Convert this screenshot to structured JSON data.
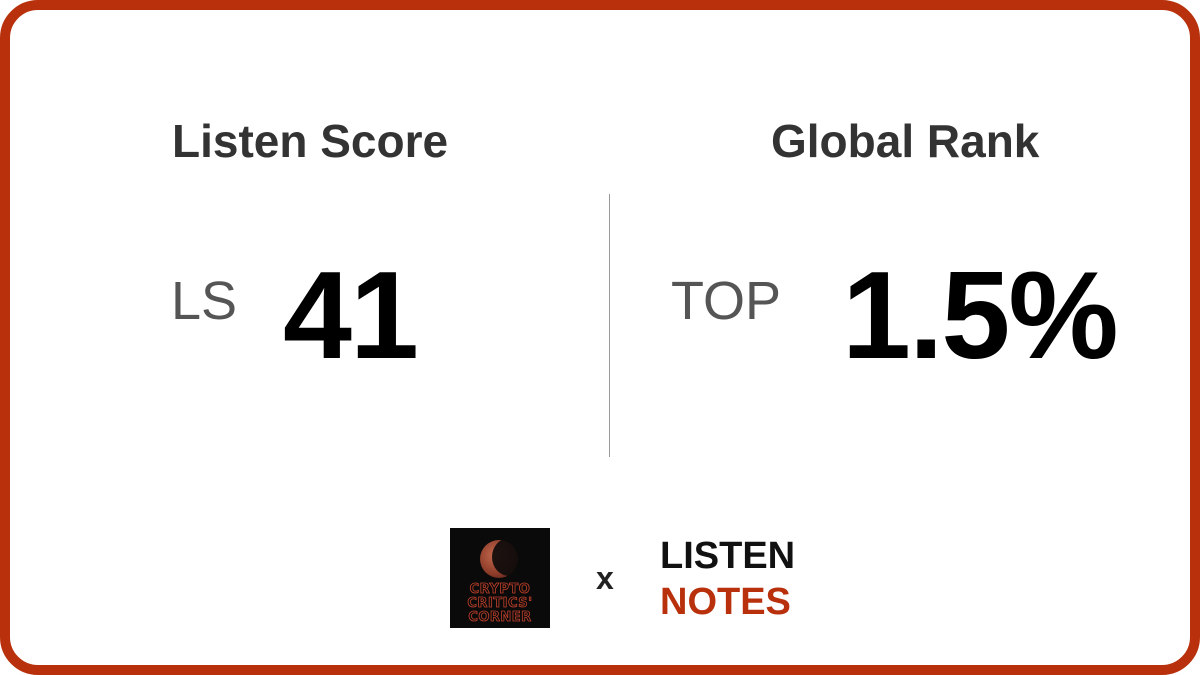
{
  "listen_score": {
    "heading": "Listen Score",
    "prefix": "LS",
    "value": "41"
  },
  "global_rank": {
    "heading": "Global Rank",
    "prefix": "TOP",
    "value": "1.5%"
  },
  "footer": {
    "podcast_art": {
      "lines": [
        "CRYPTO",
        "CRITICS'",
        "CORNER"
      ]
    },
    "separator": "x",
    "brand": {
      "line1": "LISTEN",
      "line2": "NOTES"
    }
  },
  "colors": {
    "accent": "#b8310c",
    "heading": "#333333",
    "prefix": "#555555",
    "value": "#000000",
    "divider": "#999999"
  }
}
